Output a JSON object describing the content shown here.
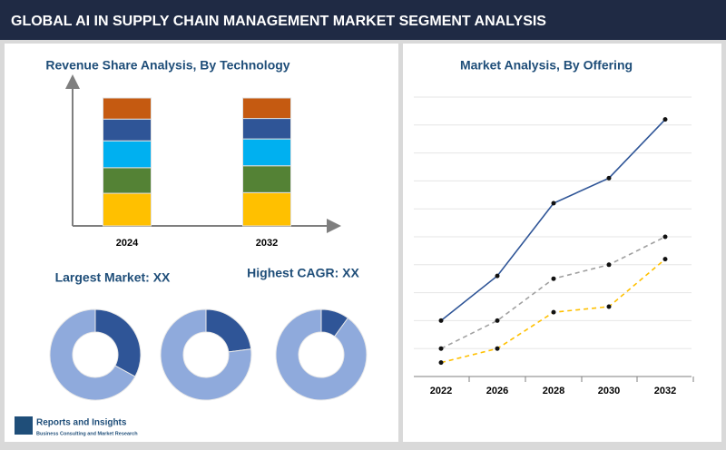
{
  "header": {
    "title": "GLOBAL AI IN SUPPLY CHAIN MANAGEMENT MARKET SEGMENT ANALYSIS"
  },
  "labels": {
    "largest_market": "Largest Market: XX",
    "highest_cagr": "Highest CAGR: XX"
  },
  "footer": {
    "brand": "Reports and Insights",
    "tagline": "Business Consulting and Market Research"
  },
  "chart_data": [
    {
      "type": "stacked-bar",
      "title": "Revenue Share Analysis, By Technology",
      "categories": [
        "2024",
        "2032"
      ],
      "ylim": [
        0,
        100
      ],
      "series": [
        {
          "color": "#ffc000",
          "values": [
            25.5,
            26
          ]
        },
        {
          "color": "#548235",
          "values": [
            20,
            21
          ]
        },
        {
          "color": "#00b0f0",
          "values": [
            21,
            21
          ]
        },
        {
          "color": "#2f5597",
          "values": [
            17,
            16
          ]
        },
        {
          "color": "#c55a11",
          "values": [
            16.5,
            16
          ]
        }
      ]
    },
    {
      "type": "donut",
      "values": [
        33,
        67
      ],
      "colors": [
        "#2f5597",
        "#8faadc"
      ]
    },
    {
      "type": "donut",
      "values": [
        23,
        77
      ],
      "colors": [
        "#2f5597",
        "#8faadc"
      ]
    },
    {
      "type": "donut",
      "values": [
        10,
        90
      ],
      "colors": [
        "#2f5597",
        "#8faadc"
      ]
    },
    {
      "type": "line",
      "title": "Market Analysis, By Offering",
      "categories": [
        "2022",
        "2026",
        "2028",
        "2030",
        "2032"
      ],
      "ylim": [
        0,
        10
      ],
      "yticks": [
        0,
        1,
        2,
        3,
        4,
        5,
        6,
        7,
        8,
        9,
        10
      ],
      "grid": true,
      "series": [
        {
          "color": "#2f5597",
          "dash": false,
          "values": [
            2.0,
            3.6,
            6.2,
            7.1,
            9.2
          ]
        },
        {
          "color": "#a0a0a0",
          "dash": true,
          "values": [
            1.0,
            2.0,
            3.5,
            4.0,
            5.0
          ]
        },
        {
          "color": "#ffc000",
          "dash": true,
          "values": [
            0.5,
            1.0,
            2.3,
            2.5,
            4.2
          ]
        }
      ]
    }
  ]
}
